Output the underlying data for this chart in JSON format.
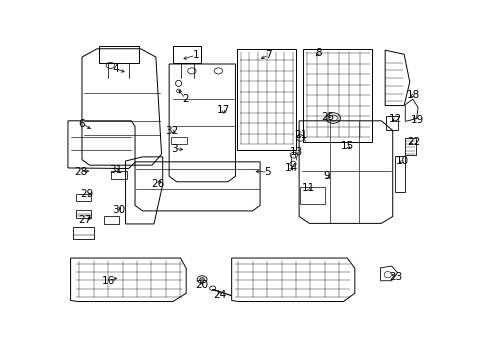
{
  "background_color": "#ffffff",
  "text_color": "#000000",
  "line_color": "#000000",
  "font_size": 7.5,
  "labels": {
    "1": [
      0.355,
      0.957,
      0.315,
      0.94
    ],
    "2": [
      0.328,
      0.8,
      0.305,
      0.84
    ],
    "3": [
      0.298,
      0.62,
      0.33,
      0.615
    ],
    "4": [
      0.145,
      0.908,
      0.175,
      0.892
    ],
    "5": [
      0.545,
      0.535,
      0.505,
      0.538
    ],
    "6": [
      0.055,
      0.71,
      0.085,
      0.685
    ],
    "7": [
      0.548,
      0.957,
      0.52,
      0.94
    ],
    "8": [
      0.68,
      0.966,
      0.672,
      0.952
    ],
    "9": [
      0.702,
      0.52,
      0.71,
      0.512
    ],
    "10": [
      0.901,
      0.575,
      0.893,
      0.565
    ],
    "11": [
      0.652,
      0.476,
      0.66,
      0.467
    ],
    "12": [
      0.882,
      0.727,
      0.874,
      0.718
    ],
    "13": [
      0.622,
      0.607,
      0.618,
      0.598
    ],
    "14": [
      0.608,
      0.548,
      0.612,
      0.54
    ],
    "15": [
      0.756,
      0.628,
      0.77,
      0.615
    ],
    "16": [
      0.125,
      0.142,
      0.155,
      0.157
    ],
    "17": [
      0.428,
      0.758,
      0.43,
      0.745
    ],
    "18": [
      0.93,
      0.812,
      0.92,
      0.808
    ],
    "19": [
      0.94,
      0.722,
      0.928,
      0.732
    ],
    "20": [
      0.37,
      0.127,
      0.378,
      0.147
    ],
    "21": [
      0.632,
      0.668,
      0.628,
      0.658
    ],
    "22": [
      0.93,
      0.643,
      0.918,
      0.638
    ],
    "23": [
      0.882,
      0.157,
      0.872,
      0.167
    ],
    "24": [
      0.418,
      0.092,
      0.415,
      0.108
    ],
    "25": [
      0.703,
      0.733,
      0.718,
      0.733
    ],
    "26": [
      0.255,
      0.492,
      0.264,
      0.505
    ],
    "27": [
      0.063,
      0.362,
      0.088,
      0.375
    ],
    "28": [
      0.052,
      0.536,
      0.082,
      0.54
    ],
    "29": [
      0.068,
      0.455,
      0.088,
      0.458
    ],
    "30": [
      0.153,
      0.397,
      0.158,
      0.408
    ],
    "31": [
      0.143,
      0.543,
      0.162,
      0.545
    ],
    "32": [
      0.293,
      0.683,
      0.302,
      0.678
    ]
  }
}
